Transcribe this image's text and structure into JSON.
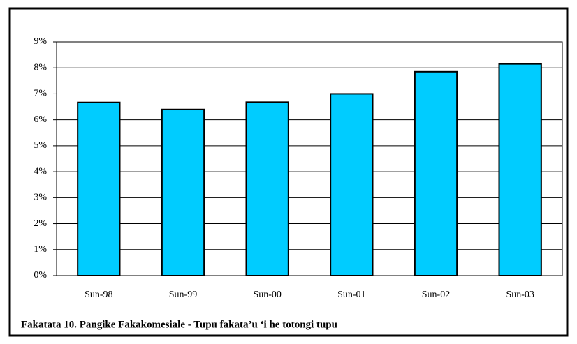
{
  "chart_data": {
    "type": "bar",
    "caption": "Fakatata 10.   Pangike Fakakomesiale - Tupu fakata’u ‘i he totongi tupu",
    "categories": [
      "Sun-98",
      "Sun-99",
      "Sun-00",
      "Sun-01",
      "Sun-02",
      "Sun-03"
    ],
    "values": [
      6.67,
      6.4,
      6.68,
      7.0,
      7.85,
      8.15
    ],
    "color": "#00ccff",
    "ylim": [
      0,
      9
    ],
    "yticks": [
      {
        "value": 0,
        "label": "0%"
      },
      {
        "value": 1,
        "label": "1%"
      },
      {
        "value": 2,
        "label": "2%"
      },
      {
        "value": 3,
        "label": "3%"
      },
      {
        "value": 4,
        "label": "4%"
      },
      {
        "value": 5,
        "label": "5%"
      },
      {
        "value": 6,
        "label": "6%"
      },
      {
        "value": 7,
        "label": "7%"
      },
      {
        "value": 8,
        "label": "8%"
      },
      {
        "value": 9,
        "label": "9%"
      }
    ],
    "grid": true
  }
}
